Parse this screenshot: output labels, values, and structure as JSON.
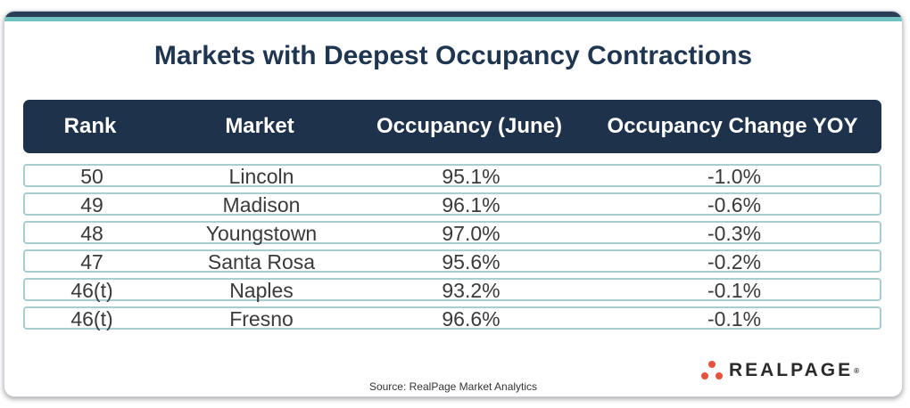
{
  "title": "Markets with Deepest Occupancy Contractions",
  "table": {
    "headers": [
      "Rank",
      "Market",
      "Occupancy (June)",
      "Occupancy Change YOY"
    ],
    "rows": [
      {
        "rank": "50",
        "market": "Lincoln",
        "occupancy": "95.1%",
        "change": "-1.0%"
      },
      {
        "rank": "49",
        "market": "Madison",
        "occupancy": "96.1%",
        "change": "-0.6%"
      },
      {
        "rank": "48",
        "market": "Youngstown",
        "occupancy": "97.0%",
        "change": "-0.3%"
      },
      {
        "rank": "47",
        "market": "Santa Rosa",
        "occupancy": "95.6%",
        "change": "-0.2%"
      },
      {
        "rank": "46(t)",
        "market": "Naples",
        "occupancy": "93.2%",
        "change": "-0.1%"
      },
      {
        "rank": "46(t)",
        "market": "Fresno",
        "occupancy": "96.6%",
        "change": "-0.1%"
      }
    ]
  },
  "source": "Source: RealPage Market Analytics",
  "logo": {
    "text": "REALPAGE",
    "trademark": "®",
    "icon": "dots-icon",
    "accent": "#e5533d"
  },
  "colors": {
    "header_bg": "#1e324b",
    "title": "#1f3650",
    "row_border": "#a9ccd1",
    "top_accent": "#6fc3c0"
  }
}
